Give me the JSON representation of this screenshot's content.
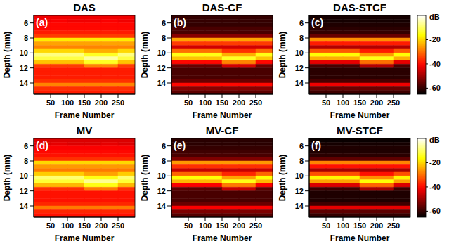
{
  "chart_data": [
    {
      "type": "heatmap",
      "title": "DAS",
      "annotations": [
        "(a)"
      ],
      "x_label": "Frame Number",
      "y_label": "Depth (mm)",
      "xlim": [
        0,
        300
      ],
      "xticks": [
        50,
        100,
        150,
        200,
        250
      ],
      "ylim": [
        5,
        15.5
      ],
      "yticks": [
        6,
        8,
        10,
        12,
        14
      ],
      "x_bins": [
        0,
        50,
        100,
        150,
        200,
        250,
        300
      ],
      "y_bins": [
        5,
        5.5,
        6,
        6.5,
        7,
        7.5,
        8,
        8.5,
        9,
        9.5,
        10,
        10.5,
        11,
        11.5,
        12,
        12.5,
        13,
        13.5,
        14,
        14.5,
        15,
        15.5
      ],
      "cells": [
        [
          -42,
          -42,
          -42,
          -42,
          -42,
          -42
        ],
        [
          -42,
          -41,
          -42,
          -42,
          -41,
          -42
        ],
        [
          -40,
          -40,
          -40,
          -40,
          -40,
          -40
        ],
        [
          -40,
          -40,
          -40,
          -40,
          -40,
          -40
        ],
        [
          -38,
          -38,
          -38,
          -38,
          -38,
          -38
        ],
        [
          -35,
          -35,
          -35,
          -35,
          -35,
          -35
        ],
        [
          -18,
          -18,
          -18,
          -18,
          -18,
          -18
        ],
        [
          -25,
          -25,
          -25,
          -25,
          -25,
          -25
        ],
        [
          -28,
          -28,
          -28,
          -28,
          -28,
          -28
        ],
        [
          -20,
          -20,
          -20,
          -24,
          -24,
          -20
        ],
        [
          -8,
          -8,
          -8,
          -14,
          -14,
          -8
        ],
        [
          -12,
          -12,
          -12,
          -6,
          -6,
          -12
        ],
        [
          -22,
          -22,
          -22,
          -14,
          -14,
          -22
        ],
        [
          -35,
          -35,
          -35,
          -28,
          -28,
          -35
        ],
        [
          -38,
          -38,
          -38,
          -38,
          -38,
          -38
        ],
        [
          -38,
          -38,
          -38,
          -38,
          -38,
          -38
        ],
        [
          -38,
          -38,
          -38,
          -38,
          -38,
          -38
        ],
        [
          -36,
          -36,
          -36,
          -36,
          -36,
          -36
        ],
        [
          -28,
          -28,
          -28,
          -28,
          -28,
          -28
        ],
        [
          -36,
          -36,
          -36,
          -36,
          -36,
          -36
        ],
        [
          -38,
          -38,
          -38,
          -38,
          -38,
          -38
        ]
      ]
    },
    {
      "type": "heatmap",
      "title": "DAS-CF",
      "annotations": [
        "(b)"
      ],
      "x_label": "Frame Number",
      "y_label": "Depth (mm)",
      "xlim": [
        0,
        300
      ],
      "xticks": [
        50,
        100,
        150,
        200,
        250
      ],
      "ylim": [
        5,
        15.5
      ],
      "yticks": [
        6,
        8,
        10,
        12,
        14
      ],
      "x_bins": [
        0,
        50,
        100,
        150,
        200,
        250,
        300
      ],
      "y_bins": [
        5,
        5.5,
        6,
        6.5,
        7,
        7.5,
        8,
        8.5,
        9,
        9.5,
        10,
        10.5,
        11,
        11.5,
        12,
        12.5,
        13,
        13.5,
        14,
        14.5,
        15,
        15.5
      ],
      "cells": [
        [
          -60,
          -60,
          -60,
          -60,
          -60,
          -60
        ],
        [
          -60,
          -60,
          -60,
          -60,
          -60,
          -60
        ],
        [
          -60,
          -60,
          -60,
          -60,
          -60,
          -60
        ],
        [
          -58,
          -58,
          -58,
          -58,
          -58,
          -58
        ],
        [
          -58,
          -58,
          -58,
          -58,
          -58,
          -58
        ],
        [
          -52,
          -52,
          -52,
          -52,
          -52,
          -52
        ],
        [
          -25,
          -25,
          -25,
          -25,
          -25,
          -25
        ],
        [
          -35,
          -35,
          -35,
          -35,
          -35,
          -35
        ],
        [
          -45,
          -45,
          -45,
          -45,
          -45,
          -45
        ],
        [
          -30,
          -30,
          -30,
          -36,
          -36,
          -30
        ],
        [
          -15,
          -15,
          -15,
          -24,
          -24,
          -15
        ],
        [
          -22,
          -22,
          -22,
          -14,
          -14,
          -22
        ],
        [
          -40,
          -40,
          -40,
          -28,
          -28,
          -40
        ],
        [
          -55,
          -55,
          -55,
          -45,
          -45,
          -55
        ],
        [
          -58,
          -58,
          -58,
          -58,
          -58,
          -58
        ],
        [
          -58,
          -58,
          -58,
          -58,
          -58,
          -58
        ],
        [
          -58,
          -58,
          -58,
          -58,
          -58,
          -58
        ],
        [
          -55,
          -55,
          -55,
          -55,
          -55,
          -55
        ],
        [
          -40,
          -40,
          -40,
          -40,
          -40,
          -40
        ],
        [
          -52,
          -52,
          -52,
          -52,
          -52,
          -52
        ],
        [
          -56,
          -56,
          -56,
          -56,
          -56,
          -56
        ]
      ]
    },
    {
      "type": "heatmap",
      "title": "DAS-STCF",
      "annotations": [
        "(c)"
      ],
      "x_label": "Frame Number",
      "y_label": "Depth (mm)",
      "xlim": [
        0,
        300
      ],
      "xticks": [
        50,
        100,
        150,
        200,
        250
      ],
      "ylim": [
        5,
        15.5
      ],
      "yticks": [
        6,
        8,
        10,
        12,
        14
      ],
      "x_bins": [
        0,
        50,
        100,
        150,
        200,
        250,
        300
      ],
      "y_bins": [
        5,
        5.5,
        6,
        6.5,
        7,
        7.5,
        8,
        8.5,
        9,
        9.5,
        10,
        10.5,
        11,
        11.5,
        12,
        12.5,
        13,
        13.5,
        14,
        14.5,
        15,
        15.5
      ],
      "cells": [
        [
          -63,
          -63,
          -63,
          -63,
          -63,
          -63
        ],
        [
          -63,
          -63,
          -63,
          -63,
          -63,
          -63
        ],
        [
          -62,
          -62,
          -62,
          -62,
          -62,
          -62
        ],
        [
          -61,
          -61,
          -61,
          -61,
          -61,
          -61
        ],
        [
          -60,
          -60,
          -60,
          -60,
          -60,
          -60
        ],
        [
          -55,
          -55,
          -55,
          -55,
          -55,
          -55
        ],
        [
          -27,
          -27,
          -27,
          -27,
          -27,
          -27
        ],
        [
          -38,
          -38,
          -38,
          -38,
          -38,
          -38
        ],
        [
          -48,
          -48,
          -48,
          -48,
          -48,
          -48
        ],
        [
          -32,
          -32,
          -32,
          -38,
          -38,
          -32
        ],
        [
          -16,
          -16,
          -16,
          -26,
          -26,
          -16
        ],
        [
          -24,
          -24,
          -24,
          -15,
          -15,
          -24
        ],
        [
          -43,
          -43,
          -43,
          -30,
          -30,
          -43
        ],
        [
          -58,
          -58,
          -58,
          -48,
          -48,
          -58
        ],
        [
          -61,
          -61,
          -61,
          -61,
          -61,
          -61
        ],
        [
          -61,
          -61,
          -61,
          -61,
          -61,
          -61
        ],
        [
          -61,
          -61,
          -61,
          -61,
          -61,
          -61
        ],
        [
          -58,
          -58,
          -58,
          -58,
          -58,
          -58
        ],
        [
          -42,
          -42,
          -42,
          -42,
          -42,
          -42
        ],
        [
          -55,
          -55,
          -55,
          -55,
          -55,
          -55
        ],
        [
          -59,
          -59,
          -59,
          -59,
          -59,
          -59
        ]
      ],
      "colorbar": {
        "label": "dB",
        "range": [
          -65,
          0
        ],
        "ticks": [
          -20,
          -40,
          -60
        ]
      }
    },
    {
      "type": "heatmap",
      "title": "MV",
      "annotations": [
        "(d)"
      ],
      "x_label": "Frame Number",
      "y_label": "Depth (mm)",
      "xlim": [
        0,
        300
      ],
      "xticks": [
        50,
        100,
        150,
        200,
        250
      ],
      "ylim": [
        5,
        15.5
      ],
      "yticks": [
        6,
        8,
        10,
        12,
        14
      ],
      "x_bins": [
        0,
        50,
        100,
        150,
        200,
        250,
        300
      ],
      "y_bins": [
        5,
        5.5,
        6,
        6.5,
        7,
        7.5,
        8,
        8.5,
        9,
        9.5,
        10,
        10.5,
        11,
        11.5,
        12,
        12.5,
        13,
        13.5,
        14,
        14.5,
        15,
        15.5
      ],
      "cells": [
        [
          -44,
          -44,
          -44,
          -44,
          -44,
          -44
        ],
        [
          -44,
          -43,
          -44,
          -44,
          -43,
          -44
        ],
        [
          -41,
          -41,
          -41,
          -41,
          -41,
          -41
        ],
        [
          -40,
          -40,
          -40,
          -40,
          -40,
          -40
        ],
        [
          -39,
          -39,
          -39,
          -39,
          -39,
          -39
        ],
        [
          -36,
          -36,
          -36,
          -36,
          -36,
          -36
        ],
        [
          -20,
          -20,
          -20,
          -20,
          -20,
          -20
        ],
        [
          -26,
          -26,
          -26,
          -26,
          -26,
          -26
        ],
        [
          -29,
          -29,
          -29,
          -29,
          -29,
          -29
        ],
        [
          -21,
          -21,
          -21,
          -25,
          -25,
          -21
        ],
        [
          -9,
          -9,
          -9,
          -15,
          -15,
          -9
        ],
        [
          -13,
          -13,
          -13,
          -7,
          -7,
          -13
        ],
        [
          -23,
          -23,
          -23,
          -15,
          -15,
          -23
        ],
        [
          -36,
          -36,
          -36,
          -29,
          -29,
          -36
        ],
        [
          -39,
          -39,
          -39,
          -39,
          -39,
          -39
        ],
        [
          -39,
          -39,
          -39,
          -39,
          -39,
          -39
        ],
        [
          -39,
          -39,
          -39,
          -39,
          -39,
          -39
        ],
        [
          -37,
          -37,
          -37,
          -37,
          -37,
          -37
        ],
        [
          -29,
          -29,
          -29,
          -29,
          -29,
          -29
        ],
        [
          -37,
          -37,
          -37,
          -37,
          -37,
          -37
        ],
        [
          -39,
          -39,
          -39,
          -39,
          -39,
          -39
        ]
      ]
    },
    {
      "type": "heatmap",
      "title": "MV-CF",
      "annotations": [
        "(e)"
      ],
      "x_label": "Frame Number",
      "y_label": "Depth (mm)",
      "xlim": [
        0,
        300
      ],
      "xticks": [
        50,
        100,
        150,
        200,
        250
      ],
      "ylim": [
        5,
        15.5
      ],
      "yticks": [
        6,
        8,
        10,
        12,
        14
      ],
      "x_bins": [
        0,
        50,
        100,
        150,
        200,
        250,
        300
      ],
      "y_bins": [
        5,
        5.5,
        6,
        6.5,
        7,
        7.5,
        8,
        8.5,
        9,
        9.5,
        10,
        10.5,
        11,
        11.5,
        12,
        12.5,
        13,
        13.5,
        14,
        14.5,
        15,
        15.5
      ],
      "cells": [
        [
          -61,
          -61,
          -61,
          -61,
          -61,
          -61
        ],
        [
          -61,
          -61,
          -61,
          -61,
          -61,
          -61
        ],
        [
          -60,
          -60,
          -60,
          -60,
          -60,
          -60
        ],
        [
          -59,
          -59,
          -59,
          -59,
          -59,
          -59
        ],
        [
          -58,
          -58,
          -58,
          -58,
          -58,
          -58
        ],
        [
          -53,
          -53,
          -53,
          -53,
          -53,
          -53
        ],
        [
          -26,
          -26,
          -26,
          -26,
          -26,
          -26
        ],
        [
          -36,
          -36,
          -36,
          -36,
          -36,
          -36
        ],
        [
          -46,
          -46,
          -46,
          -46,
          -46,
          -46
        ],
        [
          -31,
          -31,
          -31,
          -37,
          -37,
          -31
        ],
        [
          -16,
          -16,
          -16,
          -25,
          -25,
          -16
        ],
        [
          -23,
          -23,
          -23,
          -15,
          -15,
          -23
        ],
        [
          -41,
          -41,
          -41,
          -29,
          -29,
          -41
        ],
        [
          -56,
          -56,
          -56,
          -46,
          -46,
          -56
        ],
        [
          -58,
          -58,
          -58,
          -58,
          -58,
          -58
        ],
        [
          -58,
          -58,
          -58,
          -58,
          -58,
          -58
        ],
        [
          -58,
          -58,
          -58,
          -58,
          -58,
          -58
        ],
        [
          -55,
          -55,
          -55,
          -55,
          -55,
          -55
        ],
        [
          -41,
          -41,
          -41,
          -41,
          -41,
          -41
        ],
        [
          -53,
          -53,
          -53,
          -53,
          -53,
          -53
        ],
        [
          -57,
          -57,
          -57,
          -57,
          -57,
          -57
        ]
      ]
    },
    {
      "type": "heatmap",
      "title": "MV-STCF",
      "annotations": [
        "(f)"
      ],
      "x_label": "Frame Number",
      "y_label": "Depth (mm)",
      "xlim": [
        0,
        300
      ],
      "xticks": [
        50,
        100,
        150,
        200,
        250
      ],
      "ylim": [
        5,
        15.5
      ],
      "yticks": [
        6,
        8,
        10,
        12,
        14
      ],
      "x_bins": [
        0,
        50,
        100,
        150,
        200,
        250,
        300
      ],
      "y_bins": [
        5,
        5.5,
        6,
        6.5,
        7,
        7.5,
        8,
        8.5,
        9,
        9.5,
        10,
        10.5,
        11,
        11.5,
        12,
        12.5,
        13,
        13.5,
        14,
        14.5,
        15,
        15.5
      ],
      "cells": [
        [
          -64,
          -64,
          -64,
          -64,
          -64,
          -64
        ],
        [
          -63,
          -63,
          -63,
          -63,
          -63,
          -63
        ],
        [
          -62,
          -62,
          -62,
          -62,
          -62,
          -62
        ],
        [
          -62,
          -62,
          -62,
          -62,
          -62,
          -62
        ],
        [
          -61,
          -61,
          -61,
          -61,
          -61,
          -61
        ],
        [
          -56,
          -56,
          -56,
          -56,
          -56,
          -56
        ],
        [
          -28,
          -28,
          -28,
          -28,
          -28,
          -28
        ],
        [
          -39,
          -39,
          -39,
          -39,
          -39,
          -39
        ],
        [
          -49,
          -49,
          -49,
          -49,
          -49,
          -49
        ],
        [
          -33,
          -33,
          -33,
          -39,
          -39,
          -33
        ],
        [
          -17,
          -17,
          -17,
          -27,
          -27,
          -17
        ],
        [
          -25,
          -25,
          -25,
          -16,
          -16,
          -25
        ],
        [
          -44,
          -44,
          -44,
          -31,
          -31,
          -44
        ],
        [
          -59,
          -59,
          -59,
          -49,
          -49,
          -59
        ],
        [
          -62,
          -62,
          -62,
          -62,
          -62,
          -62
        ],
        [
          -62,
          -62,
          -62,
          -62,
          -62,
          -62
        ],
        [
          -62,
          -62,
          -62,
          -62,
          -62,
          -62
        ],
        [
          -59,
          -59,
          -59,
          -59,
          -59,
          -59
        ],
        [
          -43,
          -43,
          -43,
          -43,
          -43,
          -43
        ],
        [
          -56,
          -56,
          -56,
          -56,
          -56,
          -56
        ],
        [
          -60,
          -60,
          -60,
          -60,
          -60,
          -60
        ]
      ],
      "colorbar": {
        "label": "dB",
        "range": [
          -65,
          0
        ],
        "ticks": [
          -20,
          -40,
          -60
        ]
      }
    }
  ]
}
